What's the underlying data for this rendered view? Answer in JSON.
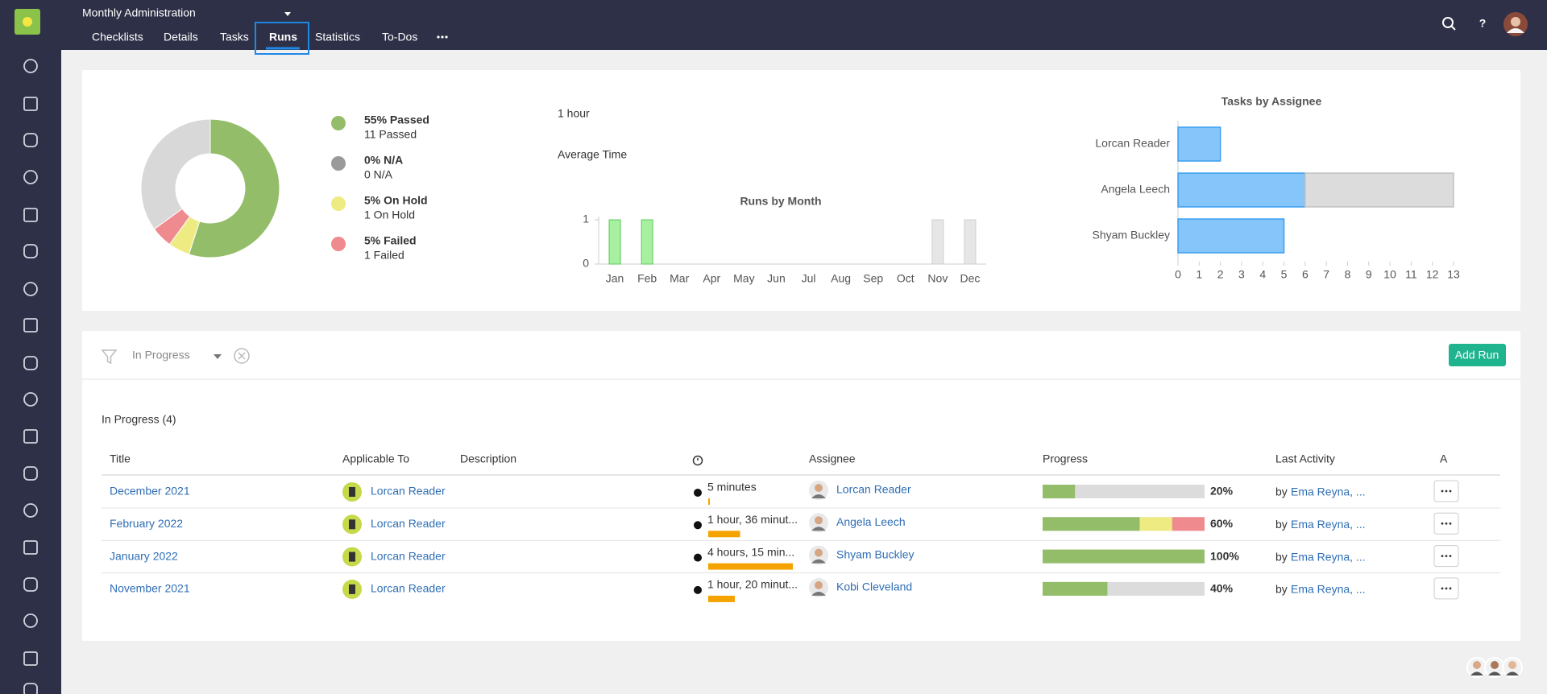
{
  "header": {
    "title": "Monthly Administration",
    "tabs": [
      "Checklists",
      "Details",
      "Tasks",
      "Runs",
      "Statistics",
      "To-Dos"
    ],
    "active_tab": 3
  },
  "summary": {
    "average_time": "1 hour",
    "average_time_label": "Average Time"
  },
  "chart_data": [
    {
      "type": "pie",
      "categories": [
        "55% Passed",
        "0% N/A",
        "5% On Hold",
        "5% Failed",
        null
      ],
      "sublabels": [
        "11 Passed",
        "0 N/A",
        "1 On Hold",
        "1 Failed",
        null
      ],
      "values": [
        55,
        0,
        5,
        5,
        35
      ],
      "colors": [
        "#94bd6a",
        "#9a9a9a",
        "#eeeb82",
        "#ef8a8f",
        "#d8d8d8"
      ]
    },
    {
      "type": "bar",
      "title": "Runs by Month",
      "categories": [
        "Jan",
        "Feb",
        "Mar",
        "Apr",
        "May",
        "Jun",
        "Jul",
        "Aug",
        "Sep",
        "Oct",
        "Nov",
        "Dec"
      ],
      "series": [
        {
          "color": "#a6f0a0",
          "values": [
            1,
            1,
            0,
            0,
            0,
            0,
            0,
            0,
            0,
            0,
            0,
            0
          ]
        },
        {
          "color": "#e6e6e6",
          "values": [
            0,
            0,
            0,
            0,
            0,
            0,
            0,
            0,
            0,
            0,
            1,
            1
          ]
        }
      ],
      "ylim": [
        0,
        1
      ],
      "yticks": [
        0,
        1
      ]
    },
    {
      "type": "hbar",
      "title": "Tasks by Assignee",
      "categories": [
        "Lorcan Reader",
        "Angela Leech",
        "Shyam Buckley"
      ],
      "series": [
        {
          "color": "#86c5fa",
          "values": [
            2,
            6,
            5
          ]
        },
        {
          "color": "#dcdcdc",
          "values": [
            0,
            7,
            0
          ]
        }
      ],
      "stacked": true,
      "xlim": [
        0,
        13
      ],
      "xticks": [
        0,
        1,
        2,
        3,
        4,
        5,
        6,
        7,
        8,
        9,
        10,
        11,
        12,
        13
      ]
    }
  ],
  "filter": {
    "status": "In Progress",
    "button": "Add Run"
  },
  "table": {
    "title": "In Progress (4)",
    "columns": [
      "Title",
      "Applicable To",
      "Description",
      null,
      "Assignee",
      "Progress",
      "Last Activity",
      "A"
    ],
    "progress_colors": [
      "#94bd6a",
      "#eeeb82",
      "#ef8a8f"
    ],
    "rows": [
      {
        "title": "December 2021",
        "applicable_to": "Lorcan Reader",
        "time": "5 minutes",
        "minutes": 5,
        "assignee": "Lorcan Reader",
        "progress": "20%",
        "progress_segments": [
          20
        ],
        "last_activity_prefix": "by",
        "last_activity": "Ema Reyna, ..."
      },
      {
        "title": "February 2022",
        "applicable_to": "Lorcan Reader",
        "time": "1 hour, 36 minut...",
        "minutes": 96,
        "assignee": "Angela Leech",
        "progress": "60%",
        "progress_segments": [
          60,
          20,
          20
        ],
        "last_activity_prefix": "by",
        "last_activity": "Ema Reyna, ..."
      },
      {
        "title": "January 2022",
        "applicable_to": "Lorcan Reader",
        "time": "4 hours, 15 min...",
        "minutes": 255,
        "assignee": "Shyam Buckley",
        "progress": "100%",
        "progress_segments": [
          100
        ],
        "last_activity_prefix": "by",
        "last_activity": "Ema Reyna, ..."
      },
      {
        "title": "November 2021",
        "applicable_to": "Lorcan Reader",
        "time": "1 hour, 20 minut...",
        "minutes": 80,
        "assignee": "Kobi Cleveland",
        "progress": "40%",
        "progress_segments": [
          40
        ],
        "last_activity_prefix": "by",
        "last_activity": "Ema Reyna, ..."
      }
    ]
  }
}
